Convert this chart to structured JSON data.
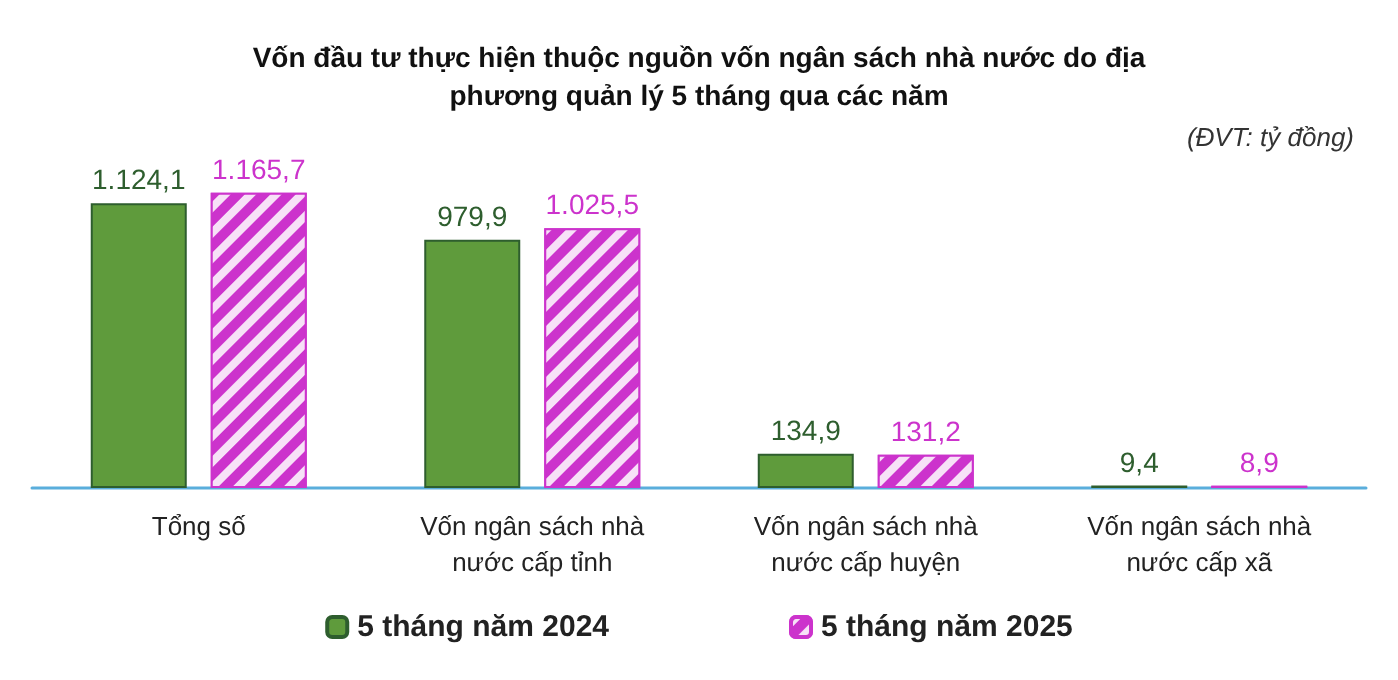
{
  "chart_data": {
    "type": "bar",
    "title": "Vốn đầu tư thực hiện thuộc nguồn vốn ngân sách nhà nước do địa phương quản lý 5 tháng qua các năm",
    "annotations": [
      "(ĐVT: tỷ đồng)"
    ],
    "categories": [
      "Tổng số",
      "Vốn ngân sách nhà nước cấp tỉnh",
      "Vốn ngân sách nhà nước cấp huyện",
      "Vốn ngân sách nhà nước cấp xã"
    ],
    "series": [
      {
        "name": "5 tháng năm 2024",
        "color": "#5f9b3c",
        "values": [
          1124.1,
          979.9,
          134.9,
          9.4
        ],
        "value_labels": [
          "1.124,1",
          "979,9",
          "134,9",
          "9,4"
        ]
      },
      {
        "name": "5 tháng năm 2025",
        "color": "#cc33cc",
        "values": [
          1165.7,
          1025.5,
          131.2,
          8.9
        ],
        "value_labels": [
          "1.165,7",
          "1.025,5",
          "131,2",
          "8,9"
        ]
      }
    ],
    "legend": "bottom"
  }
}
